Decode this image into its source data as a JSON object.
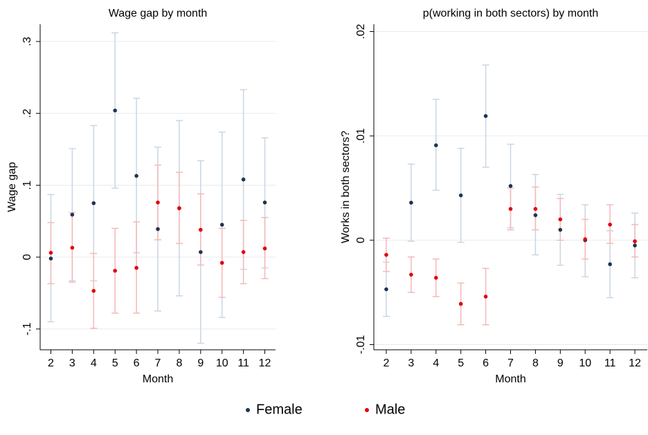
{
  "chart_data": [
    {
      "type": "errorbar",
      "title": "Wage gap by month",
      "xlabel": "Month",
      "ylabel": "Wage gap",
      "x": [
        2,
        3,
        4,
        5,
        6,
        7,
        8,
        9,
        10,
        11,
        12
      ],
      "xlim": [
        1.5,
        12.5
      ],
      "xticks": [
        2,
        3,
        4,
        5,
        6,
        7,
        8,
        9,
        10,
        11,
        12
      ],
      "ylim": [
        -0.129,
        0.324
      ],
      "yticks": [
        {
          "value": -0.1,
          "label": "-.1"
        },
        0,
        {
          "value": 0.1,
          "label": ".1"
        },
        {
          "value": 0.2,
          "label": ".2"
        },
        {
          "value": 0.3,
          "label": ".3"
        }
      ],
      "grid": true,
      "series": [
        {
          "name": "Female",
          "color": "#1c3553",
          "ci_color": "#c9d6e3",
          "values": [
            -0.002,
            0.059,
            0.075,
            0.204,
            0.113,
            0.039,
            0.068,
            0.007,
            0.045,
            0.108,
            0.076
          ],
          "lower": [
            -0.09,
            -0.033,
            -0.033,
            0.096,
            0.006,
            -0.075,
            -0.054,
            -0.12,
            -0.084,
            -0.017,
            -0.015
          ],
          "upper": [
            0.087,
            0.151,
            0.183,
            0.312,
            0.221,
            0.153,
            0.19,
            0.134,
            0.174,
            0.233,
            0.166
          ]
        },
        {
          "name": "Male",
          "color": "#e3000f",
          "ci_color": "#f5b8b8",
          "values": [
            0.006,
            0.013,
            -0.047,
            -0.019,
            -0.015,
            0.076,
            0.068,
            0.038,
            -0.008,
            0.007,
            0.012
          ],
          "lower": [
            -0.037,
            -0.035,
            -0.099,
            -0.078,
            -0.078,
            0.024,
            0.019,
            -0.011,
            -0.056,
            -0.037,
            -0.03
          ],
          "upper": [
            0.048,
            0.062,
            0.005,
            0.04,
            0.049,
            0.128,
            0.118,
            0.088,
            0.04,
            0.051,
            0.055
          ]
        }
      ]
    },
    {
      "type": "errorbar",
      "title": "p(working in both sectors) by month",
      "xlabel": "Month",
      "ylabel": "Works in both sectors?",
      "x": [
        2,
        3,
        4,
        5,
        6,
        7,
        8,
        9,
        10,
        11,
        12
      ],
      "xlim": [
        1.5,
        12.5
      ],
      "xticks": [
        2,
        3,
        4,
        5,
        6,
        7,
        8,
        9,
        10,
        11,
        12
      ],
      "ylim": [
        -0.0105,
        0.0207
      ],
      "yticks": [
        {
          "value": -0.01,
          "label": "-.01"
        },
        0,
        {
          "value": 0.01,
          "label": ".01"
        },
        {
          "value": 0.02,
          "label": ".02"
        }
      ],
      "grid": true,
      "series": [
        {
          "name": "Female",
          "color": "#1c3553",
          "ci_color": "#c9d6e3",
          "values": [
            -0.0047,
            0.0036,
            0.0091,
            0.0043,
            0.0119,
            0.0052,
            0.0024,
            0.001,
            0.0,
            -0.0023,
            -0.0005
          ],
          "lower": [
            -0.0073,
            -0.0001,
            0.0048,
            -0.0002,
            0.007,
            0.0012,
            -0.0014,
            -0.0024,
            -0.0035,
            -0.0055,
            -0.0036
          ],
          "upper": [
            -0.0021,
            0.0073,
            0.0135,
            0.0088,
            0.0168,
            0.0092,
            0.0063,
            0.0044,
            0.0034,
            0.0009,
            0.0026
          ]
        },
        {
          "name": "Male",
          "color": "#e3000f",
          "ci_color": "#f5b8b8",
          "values": [
            -0.0014,
            -0.0033,
            -0.0036,
            -0.0061,
            -0.0054,
            0.003,
            0.003,
            0.002,
            0.0001,
            0.0015,
            -0.0001
          ],
          "lower": [
            -0.003,
            -0.005,
            -0.0054,
            -0.0081,
            -0.0081,
            0.001,
            0.001,
            0.0,
            -0.0018,
            -0.0003,
            -0.0016
          ],
          "upper": [
            0.0002,
            -0.0016,
            -0.0018,
            -0.0041,
            -0.0027,
            0.005,
            0.0051,
            0.004,
            0.002,
            0.0034,
            0.0015
          ]
        }
      ]
    }
  ]
}
